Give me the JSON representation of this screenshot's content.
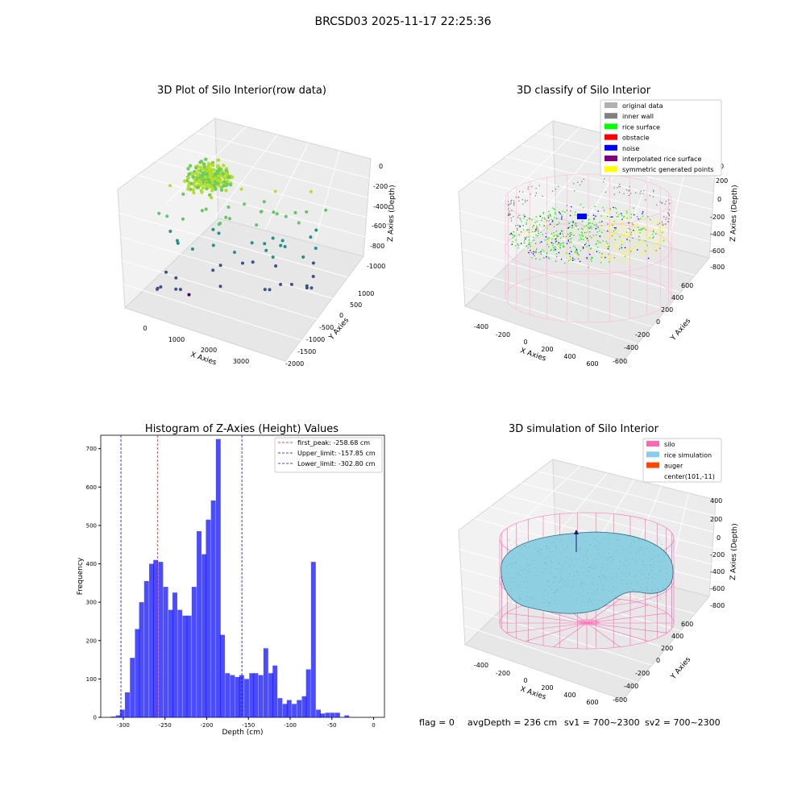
{
  "suptitle": "BRCSD03 2025-11-17 22:25:36",
  "footer": {
    "flag": "flag = 0",
    "avg": "avgDepth = 236 cm",
    "sv1": "sv1 = 700~2300",
    "sv2": "sv2 = 700~2300"
  },
  "chart_data": [
    {
      "type": "scatter",
      "projection": "3d",
      "title": "3D Plot of Silo Interior(row data)",
      "xlabel": "X Axies",
      "ylabel": "Y Axies",
      "zlabel": "Z Axies (Depth)",
      "x_ticks": [
        "0",
        "1000",
        "2000",
        "3000"
      ],
      "y_ticks": [
        "1000",
        "500",
        "0",
        "-500",
        "-1000",
        "-1500",
        "-2000"
      ],
      "z_ticks": [
        "0",
        "-200",
        "-400",
        "-600",
        "-800",
        "-1000"
      ],
      "colormap": "viridis"
    },
    {
      "type": "scatter",
      "projection": "3d",
      "title": "3D classify of Silo Interior",
      "xlabel": "X Axies",
      "ylabel": "Y Axies",
      "zlabel": "Z Axies (Depth)",
      "x_ticks": [
        "-400",
        "-200",
        "0",
        "200",
        "400",
        "600"
      ],
      "y_ticks": [
        "600",
        "400",
        "200",
        "0",
        "-200",
        "-400",
        "-600"
      ],
      "z_ticks": [
        "200",
        "0",
        "-200",
        "-400",
        "-600",
        "-800"
      ],
      "z_top_partial": "0",
      "legend": {
        "placement": "top-right",
        "items": [
          {
            "label": "original data",
            "color": "#b0b0b0"
          },
          {
            "label": "inner wall",
            "color": "#808080"
          },
          {
            "label": "rice surface",
            "color": "#00ff00"
          },
          {
            "label": "obstacle",
            "color": "#ff0000"
          },
          {
            "label": "noise",
            "color": "#0000ff"
          },
          {
            "label": "interpolated rice surface",
            "color": "#800080"
          },
          {
            "label": "symmetric generated points",
            "color": "#ffff00"
          }
        ]
      }
    },
    {
      "type": "bar",
      "subtype": "histogram",
      "title": "Histogram of Z-Axies (Height) Values",
      "xlabel": "Depth (cm)",
      "ylabel": "Frequency",
      "xlim": [
        -327,
        13
      ],
      "ylim": [
        0,
        735
      ],
      "x_ticks": [
        -300,
        -250,
        -200,
        -150,
        -100,
        -50,
        0
      ],
      "y_ticks": [
        0,
        100,
        200,
        300,
        400,
        500,
        600,
        700
      ],
      "bin_width": 5.7,
      "bins_start": [
        -315,
        -309,
        -304,
        -298,
        -292,
        -286,
        -281,
        -275,
        -269,
        -264,
        -258,
        -252,
        -246,
        -241,
        -235,
        -229,
        -224,
        -218,
        -212,
        -206,
        -201,
        -195,
        -189,
        -184,
        -178,
        -172,
        -166,
        -161,
        -155,
        -149,
        -144,
        -138,
        -132,
        -126,
        -121,
        -115,
        -109,
        -104,
        -98,
        -92,
        -86,
        -81,
        -75,
        -69,
        -64,
        -58,
        -52,
        -46,
        -41,
        -35,
        -29,
        -24,
        -18,
        -12,
        -6,
        0
      ],
      "values": [
        2,
        5,
        20,
        65,
        155,
        230,
        300,
        355,
        400,
        410,
        405,
        340,
        280,
        325,
        280,
        265,
        265,
        340,
        485,
        425,
        515,
        565,
        725,
        215,
        115,
        110,
        105,
        110,
        100,
        115,
        115,
        110,
        180,
        115,
        135,
        50,
        35,
        45,
        35,
        45,
        55,
        125,
        405,
        20,
        10,
        12,
        12,
        12,
        0,
        5,
        0,
        0,
        0,
        0,
        0,
        0
      ],
      "color": "#0000ff",
      "lines": [
        {
          "label": "first_peak: -258.68 cm",
          "x": -258.68,
          "color": "#ff0000"
        },
        {
          "label": "Upper_limit: -157.85 cm",
          "x": -157.85,
          "color": "#0000ff"
        },
        {
          "label": "Lower_limit: -302.80 cm",
          "x": -302.8,
          "color": "#0000ff"
        }
      ],
      "legend": {
        "placement": "top-right"
      }
    },
    {
      "type": "surface",
      "projection": "3d",
      "title": "3D simulation of Silo Interior",
      "xlabel": "X Axies",
      "ylabel": "Y Axies",
      "zlabel": "Z Axies (Depth)",
      "x_ticks": [
        "-400",
        "-200",
        "0",
        "200",
        "400",
        "600"
      ],
      "y_ticks": [
        "600",
        "400",
        "200",
        "0",
        "-200",
        "-400",
        "-600"
      ],
      "z_ticks": [
        "400",
        "200",
        "0",
        "-200",
        "-400",
        "-600",
        "-800"
      ],
      "legend": {
        "placement": "top-right",
        "items": [
          {
            "label": "silo",
            "color": "#ff69b4"
          },
          {
            "label": "rice simulation",
            "color": "#87ceeb"
          },
          {
            "label": "auger",
            "color": "#ff4500"
          },
          {
            "label": "center(101,-11)",
            "color": "none"
          }
        ]
      }
    }
  ]
}
